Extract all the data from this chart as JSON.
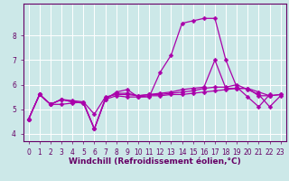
{
  "title": "",
  "xlabel": "Windchill (Refroidissement éolien,°C)",
  "ylabel": "",
  "bg_color": "#cce8e8",
  "grid_color": "#ffffff",
  "line_color": "#aa00aa",
  "xlim": [
    -0.5,
    23.5
  ],
  "ylim": [
    3.7,
    9.3
  ],
  "xticks": [
    0,
    1,
    2,
    3,
    4,
    5,
    6,
    7,
    8,
    9,
    10,
    11,
    12,
    13,
    14,
    15,
    16,
    17,
    18,
    19,
    20,
    21,
    22,
    23
  ],
  "yticks": [
    4,
    5,
    6,
    7,
    8
  ],
  "line1_x": [
    0,
    1,
    2,
    3,
    4,
    5,
    6,
    7,
    8,
    9,
    10,
    11,
    12,
    13,
    14,
    15,
    16,
    17,
    18,
    19,
    20,
    21,
    22,
    23
  ],
  "line1_y": [
    4.6,
    5.6,
    5.2,
    5.4,
    5.3,
    5.25,
    4.2,
    5.4,
    5.55,
    5.5,
    5.5,
    5.55,
    5.55,
    5.6,
    5.6,
    5.65,
    5.7,
    5.75,
    5.8,
    5.85,
    5.85,
    5.7,
    5.55,
    5.6
  ],
  "line2_x": [
    0,
    1,
    2,
    3,
    4,
    5,
    6,
    7,
    8,
    9,
    10,
    11,
    12,
    13,
    14,
    15,
    16,
    17,
    18,
    19,
    20,
    21,
    22,
    23
  ],
  "line2_y": [
    4.6,
    5.6,
    5.2,
    5.4,
    5.3,
    5.25,
    4.2,
    5.4,
    5.7,
    5.8,
    5.5,
    5.5,
    6.5,
    7.2,
    8.5,
    8.6,
    8.7,
    8.7,
    7.0,
    5.9,
    5.5,
    5.1,
    5.6,
    null
  ],
  "line3_x": [
    0,
    1,
    2,
    3,
    4,
    5,
    6,
    7,
    8,
    9,
    10,
    11,
    12,
    13,
    14,
    15,
    16,
    17,
    18,
    19,
    20,
    21,
    22,
    23
  ],
  "line3_y": [
    4.6,
    5.6,
    5.2,
    5.2,
    5.25,
    5.3,
    4.8,
    5.5,
    5.6,
    5.6,
    5.55,
    5.6,
    5.6,
    5.65,
    5.7,
    5.75,
    5.85,
    5.9,
    5.9,
    6.0,
    5.8,
    5.6,
    5.1,
    5.55
  ],
  "line4_x": [
    0,
    1,
    2,
    3,
    4,
    5,
    6,
    7,
    8,
    9,
    10,
    11,
    12,
    13,
    14,
    15,
    16,
    17,
    18,
    19,
    20,
    21,
    22,
    23
  ],
  "line4_y": [
    4.6,
    5.6,
    5.2,
    5.4,
    5.35,
    5.3,
    4.2,
    5.45,
    5.65,
    5.65,
    5.55,
    5.6,
    5.65,
    5.7,
    5.8,
    5.85,
    5.9,
    7.0,
    5.85,
    5.85,
    5.85,
    5.55,
    5.55,
    5.6
  ],
  "marker_size": 2.5,
  "line_width": 0.9,
  "xlabel_fontsize": 6.5,
  "tick_fontsize": 5.5,
  "axis_color": "#660066",
  "tick_color": "#660066"
}
